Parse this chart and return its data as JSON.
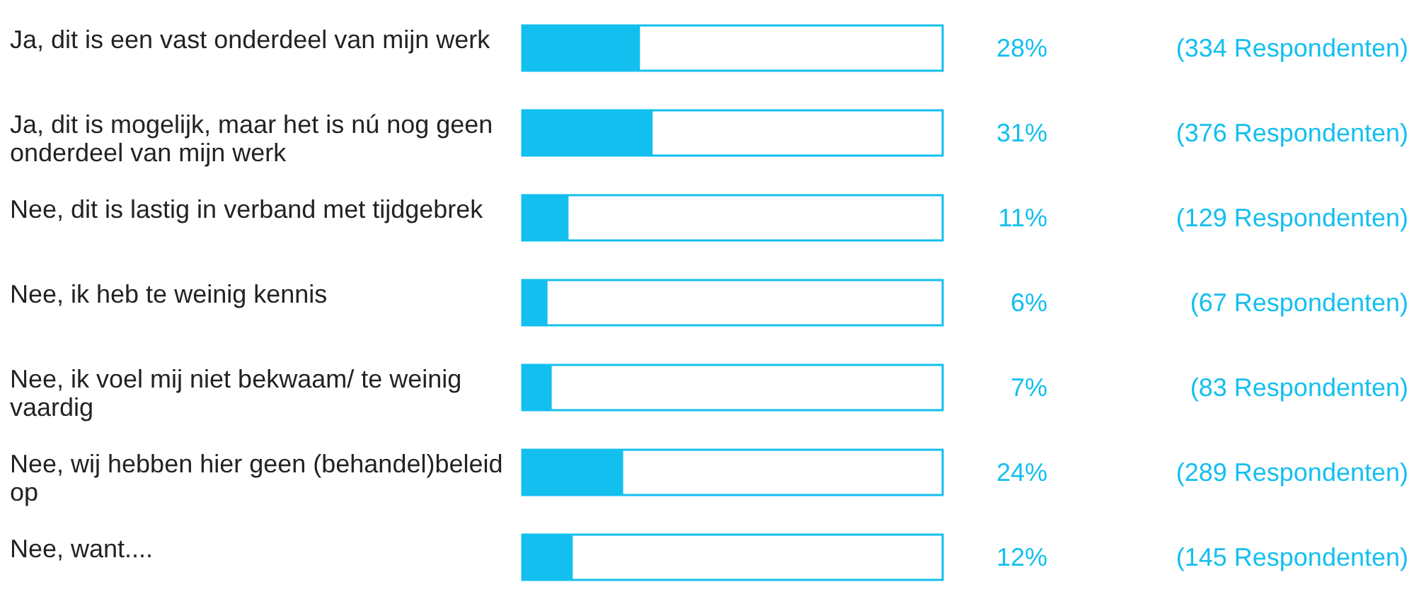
{
  "chart_data": {
    "type": "bar",
    "orientation": "horizontal",
    "categories": [
      "Ja, dit is een vast onderdeel van mijn werk",
      "Ja, dit is mogelijk, maar het is nú nog geen onderdeel van mijn werk",
      "Nee, dit is lastig in verband met tijdgebrek",
      "Nee, ik heb te weinig kennis",
      "Nee, ik voel mij niet bekwaam/ te weinig vaardig",
      "Nee, wij hebben hier geen (behandel)beleid op",
      "Nee, want...."
    ],
    "values": [
      28,
      31,
      11,
      6,
      7,
      24,
      12
    ],
    "value_labels": [
      "28%",
      "31%",
      "11%",
      "6%",
      "7%",
      "24%",
      "12%"
    ],
    "color": "#13bfef",
    "xlim": [
      0,
      100
    ],
    "tick_labels": "y",
    "annotations": [
      "(334 Respondenten)",
      "(376 Respondenten)",
      "(129 Respondenten)",
      "(67 Respondenten)",
      "(83 Respondenten)",
      "(289 Respondenten)",
      "(145 Respondenten)"
    ]
  }
}
